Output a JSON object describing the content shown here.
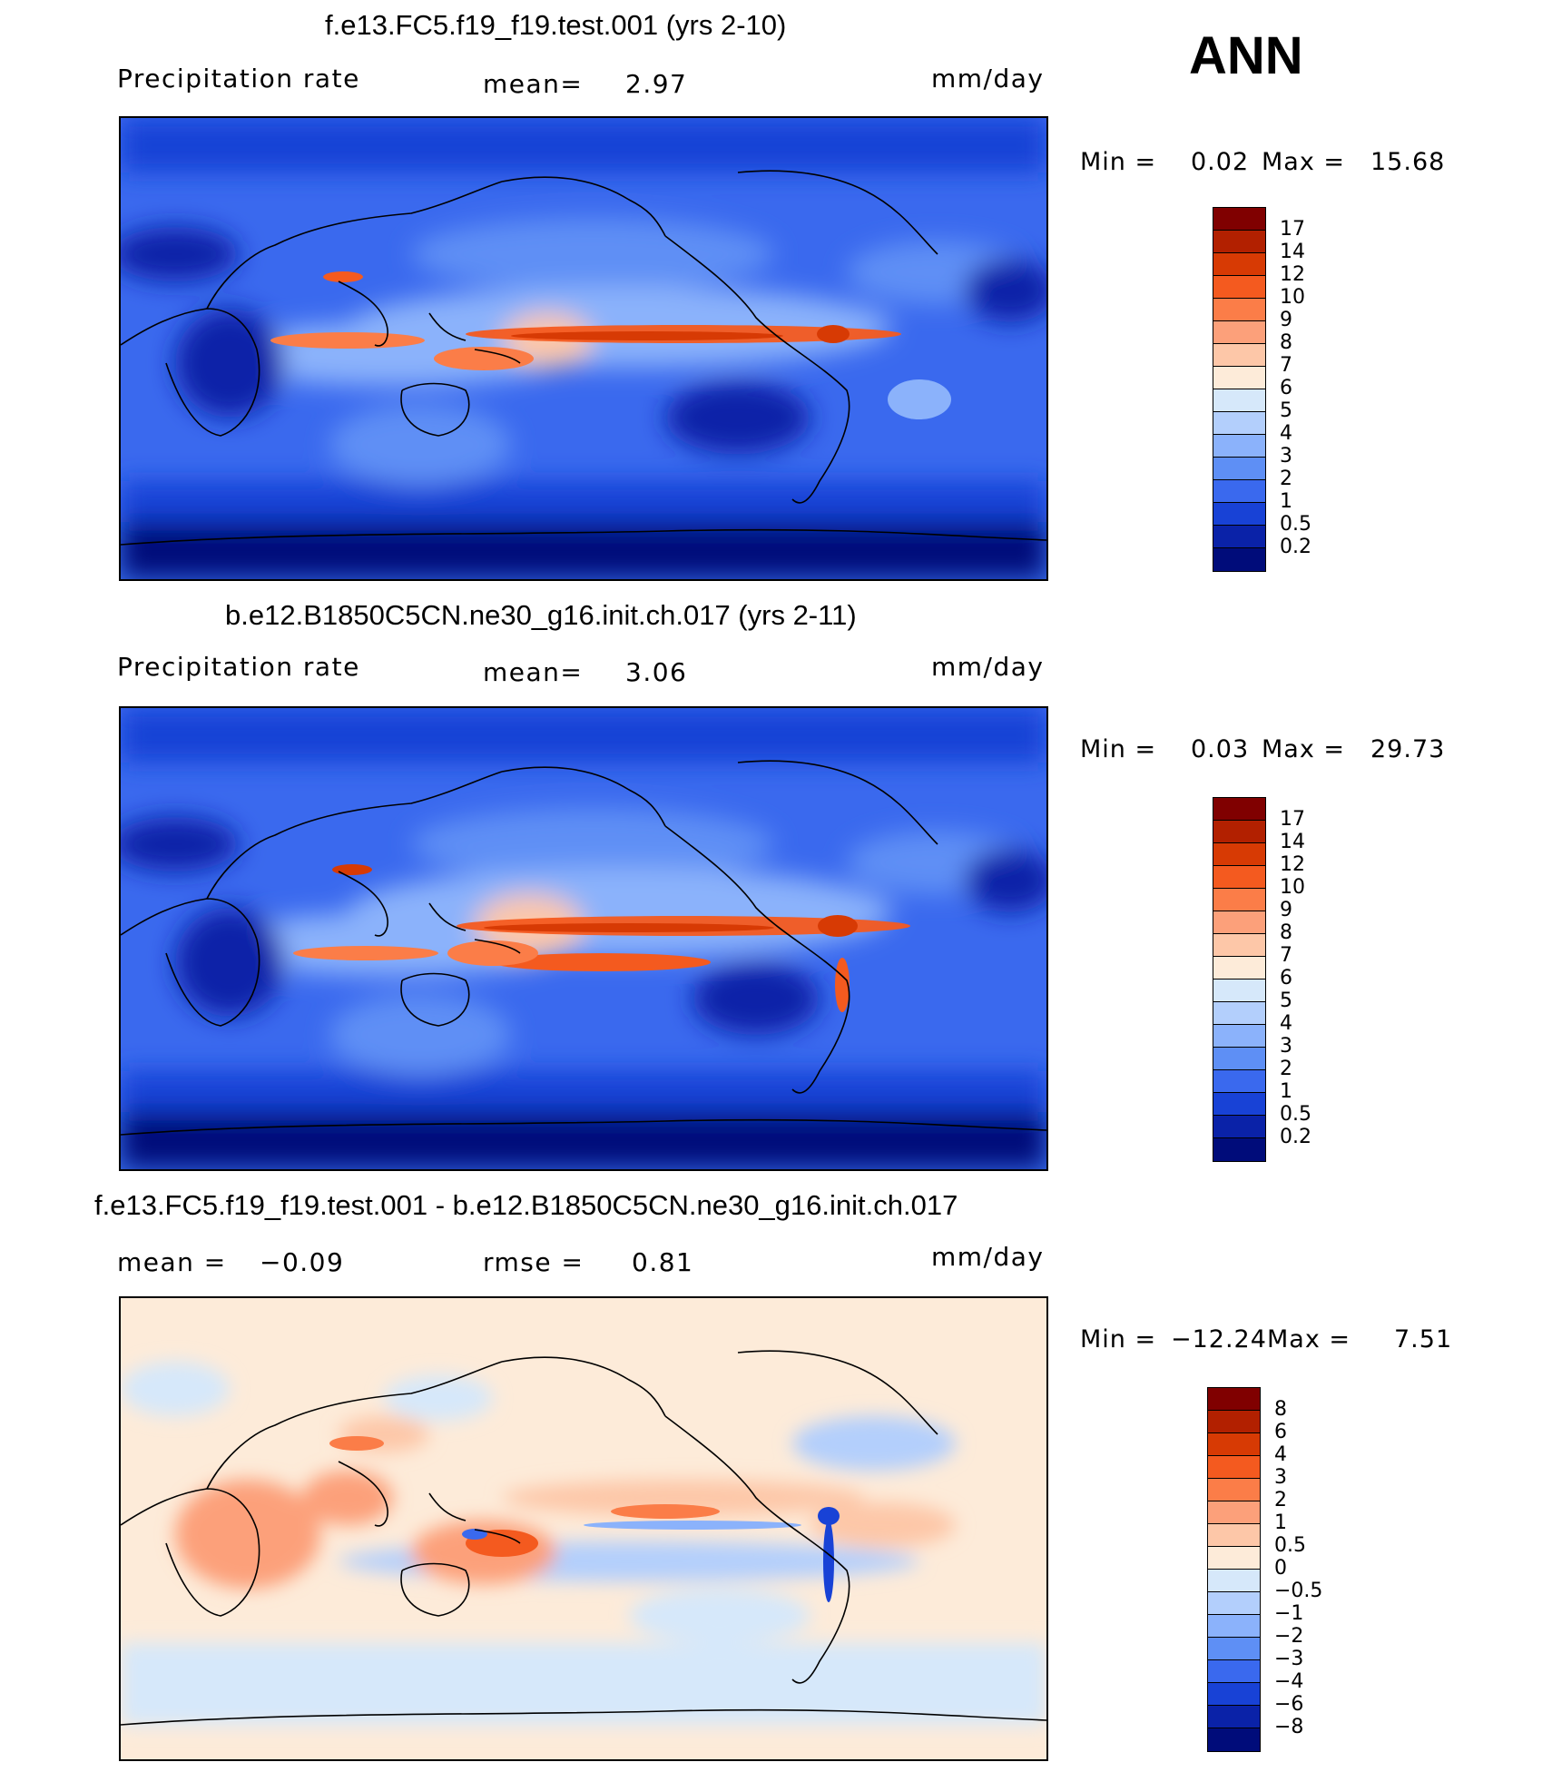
{
  "season": "ANN",
  "panels": [
    {
      "title": "f.e13.FC5.f19_f19.test.001 (yrs 2-10)",
      "left_label": "Precipitation  rate",
      "mid_label": "mean=",
      "mid_value": "2.97",
      "units": "mm/day",
      "min_label": "Min  =",
      "min_value": "0.02",
      "max_label": "Max  =",
      "max_value": "15.68",
      "colorbar": {
        "labels": [
          "17",
          "14",
          "12",
          "10",
          "9",
          "8",
          "7",
          "6",
          "5",
          "4",
          "3",
          "2",
          "1",
          "0.5",
          "0.2"
        ],
        "colors": [
          "#800000",
          "#b22000",
          "#d73a04",
          "#f45a1f",
          "#fb7d48",
          "#fca07a",
          "#fdc7a8",
          "#fdebd9",
          "#d6e8fa",
          "#b3cffc",
          "#8bb2fb",
          "#5e8ff5",
          "#3a69ee",
          "#1842d6",
          "#0a22a8",
          "#000c7a"
        ]
      }
    },
    {
      "title": "b.e12.B1850C5CN.ne30_g16.init.ch.017 (yrs 2-11)",
      "left_label": "Precipitation  rate",
      "mid_label": "mean=",
      "mid_value": "3.06",
      "units": "mm/day",
      "min_label": "Min  =",
      "min_value": "0.03",
      "max_label": "Max  =",
      "max_value": "29.73",
      "colorbar": {
        "labels": [
          "17",
          "14",
          "12",
          "10",
          "9",
          "8",
          "7",
          "6",
          "5",
          "4",
          "3",
          "2",
          "1",
          "0.5",
          "0.2"
        ],
        "colors": [
          "#800000",
          "#b22000",
          "#d73a04",
          "#f45a1f",
          "#fb7d48",
          "#fca07a",
          "#fdc7a8",
          "#fdebd9",
          "#d6e8fa",
          "#b3cffc",
          "#8bb2fb",
          "#5e8ff5",
          "#3a69ee",
          "#1842d6",
          "#0a22a8",
          "#000c7a"
        ]
      }
    },
    {
      "title": "f.e13.FC5.f19_f19.test.001 - b.e12.B1850C5CN.ne30_g16.init.ch.017",
      "left_label": "mean  =",
      "left_value": "−0.09",
      "mid_label": "rmse  =",
      "mid_value": "0.81",
      "units": "mm/day",
      "min_label": "Min  =",
      "min_value": "−12.24",
      "max_label": "Max  =",
      "max_value": "7.51",
      "colorbar": {
        "labels": [
          "8",
          "6",
          "4",
          "3",
          "2",
          "1",
          "0.5",
          "0",
          "−0.5",
          "−1",
          "−2",
          "−3",
          "−4",
          "−6",
          "−8"
        ],
        "colors": [
          "#800000",
          "#b22000",
          "#d73a04",
          "#f45a1f",
          "#fb7d48",
          "#fca07a",
          "#fdc7a8",
          "#fdebd9",
          "#d6e8fa",
          "#b3cffc",
          "#8bb2fb",
          "#5e8ff5",
          "#3a69ee",
          "#1842d6",
          "#0a22a8",
          "#000c7a"
        ]
      }
    }
  ]
}
